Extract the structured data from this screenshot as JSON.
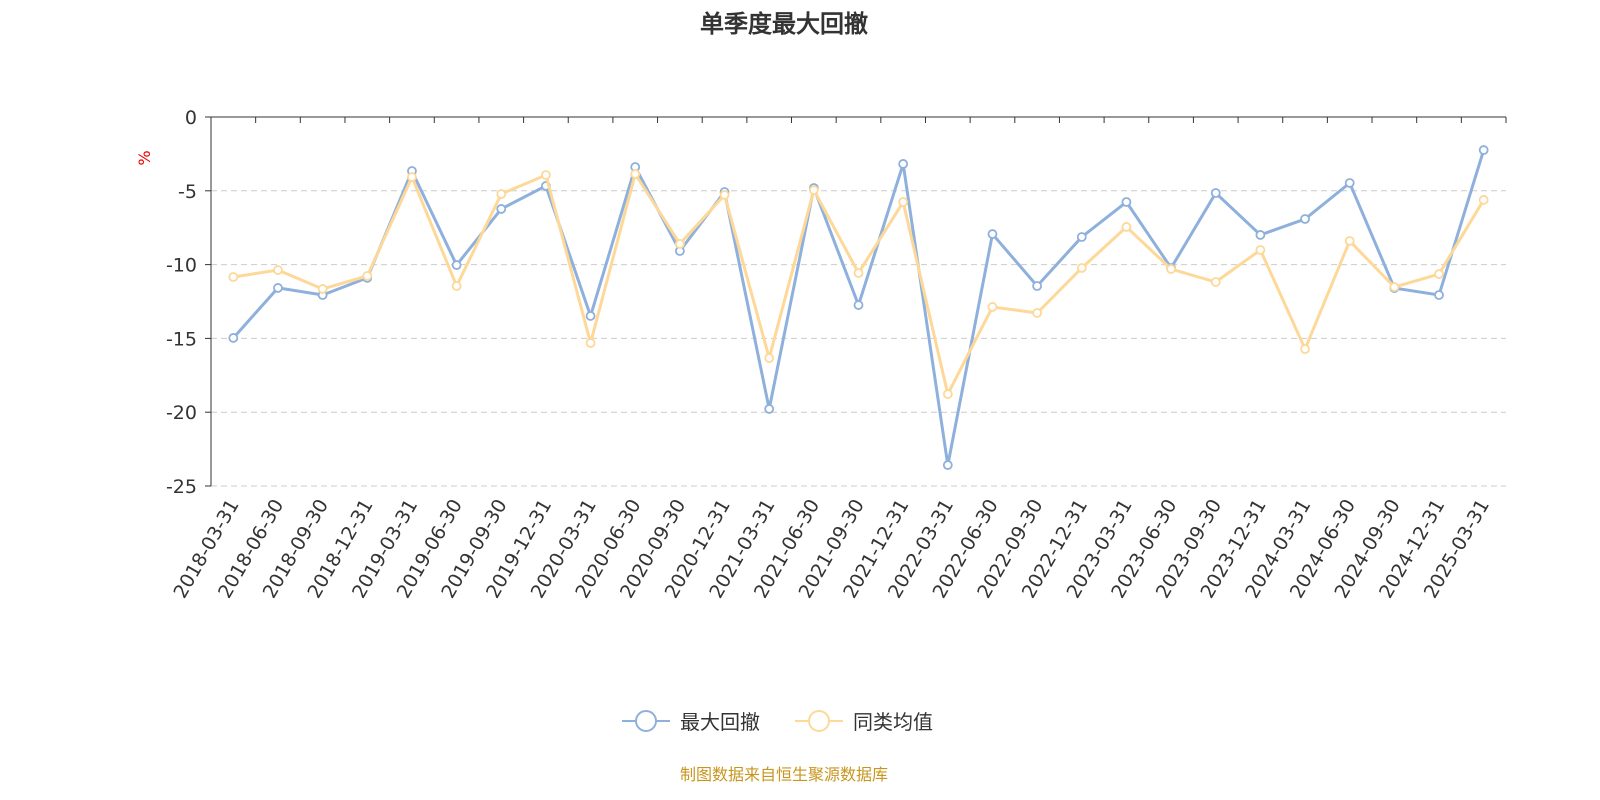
{
  "chart_data": {
    "type": "line",
    "title": "单季度最大回撤",
    "ylabel": "%",
    "xlabel": "",
    "ylim": [
      -25,
      0
    ],
    "yticks": [
      0,
      -5,
      -10,
      -15,
      -20,
      -25
    ],
    "grid": true,
    "legend_position": "bottom",
    "categories": [
      "2018-03-31",
      "2018-06-30",
      "2018-09-30",
      "2018-12-31",
      "2019-03-31",
      "2019-06-30",
      "2019-09-30",
      "2019-12-31",
      "2020-03-31",
      "2020-06-30",
      "2020-09-30",
      "2020-12-31",
      "2021-03-31",
      "2021-06-30",
      "2021-09-30",
      "2021-12-31",
      "2022-03-31",
      "2022-06-30",
      "2022-09-30",
      "2022-12-31",
      "2023-03-31",
      "2023-06-30",
      "2023-09-30",
      "2023-12-31",
      "2024-03-31",
      "2024-06-30",
      "2024-09-30",
      "2024-12-31",
      "2025-03-31"
    ],
    "series": [
      {
        "name": "最大回撤",
        "color": "#8eb0dc",
        "values": [
          -14.97,
          -11.58,
          -12.06,
          -10.9,
          -3.66,
          -10.03,
          -6.23,
          -4.67,
          -13.48,
          -3.39,
          -9.08,
          -5.08,
          -19.78,
          -4.81,
          -12.74,
          -3.18,
          -23.58,
          -7.93,
          -11.45,
          -8.13,
          -5.76,
          -10.23,
          -5.15,
          -7.99,
          -6.91,
          -4.47,
          -11.59,
          -12.06,
          -2.24
        ]
      },
      {
        "name": "同类均值",
        "color": "#fdd898",
        "values": [
          -10.84,
          -10.37,
          -11.65,
          -10.77,
          -4.07,
          -11.45,
          -5.22,
          -3.93,
          -15.31,
          -3.86,
          -8.6,
          -5.28,
          -16.33,
          -4.95,
          -10.57,
          -5.76,
          -18.77,
          -12.87,
          -13.28,
          -10.23,
          -7.45,
          -10.3,
          -11.18,
          -9.01,
          -15.72,
          -8.4,
          -11.52,
          -10.64,
          -5.62
        ]
      }
    ],
    "source": "制图数据来自恒生聚源数据库"
  }
}
